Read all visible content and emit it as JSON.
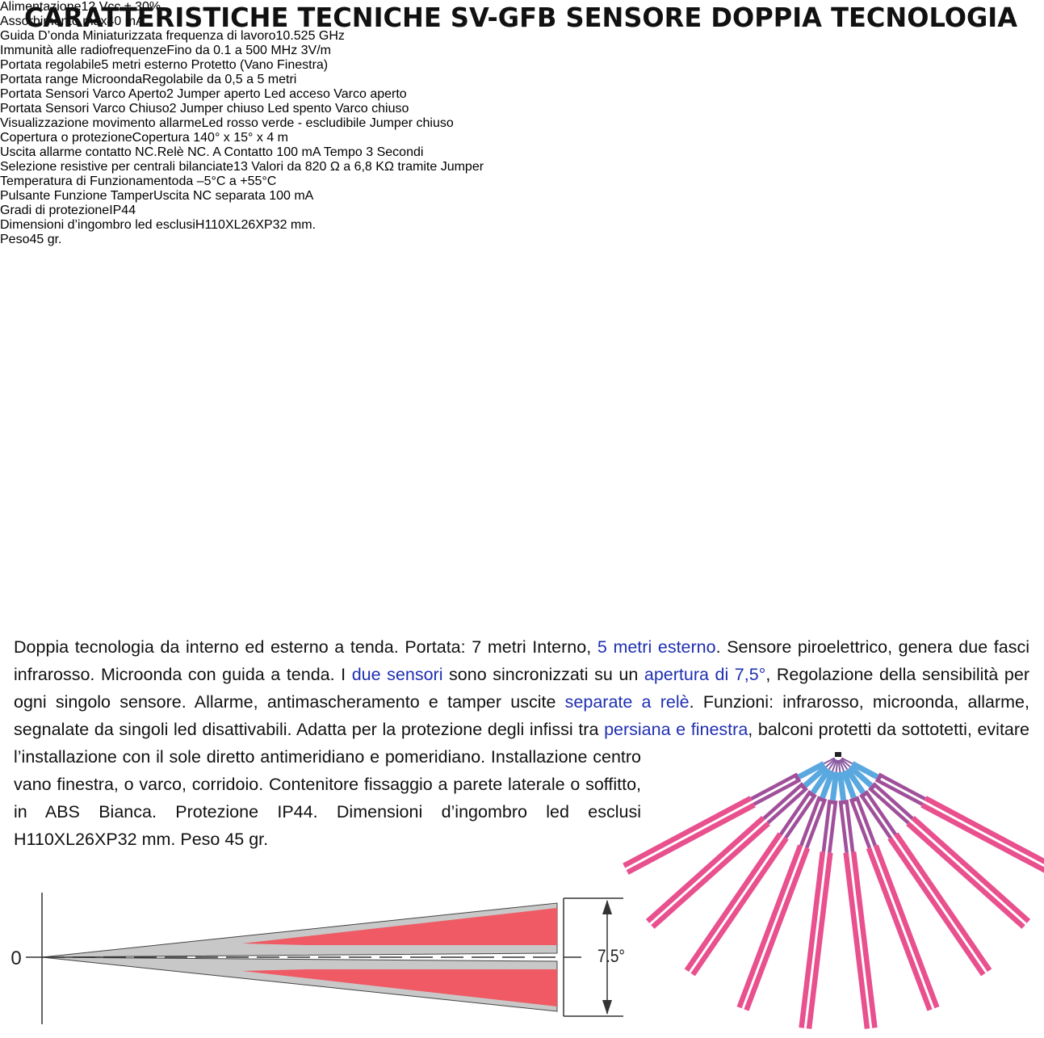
{
  "header": {
    "title": "CARATTERISTICHE TECNICHE SV-GFB SENSORE DOPPIA TECNOLOGIA"
  },
  "specs": {
    "rows": [
      [
        "Alimentazione",
        "12 Vcc ± 30%"
      ],
      [
        "Assorbimento max",
        "40 mA"
      ],
      [
        "Guida D’onda Miniaturizzata frequenza di lavoro",
        "10.525 GHz"
      ],
      [
        "Immunità alle radiofrequenze",
        "Fino da 0.1 a 500 MHz 3V/m"
      ],
      [
        "Portata regolabile",
        "5 metri esterno Protetto (Vano Finestra)"
      ],
      [
        "Portata range Microonda",
        "Regolabile da 0,5 a 5 metri"
      ],
      [
        "Portata Sensori Varco Aperto",
        "2 Jumper aperto Led acceso Varco aperto"
      ],
      [
        "Portata Sensori Varco Chiuso",
        "2 Jumper chiuso Led spento Varco chiuso"
      ],
      [
        "Visualizzazione movimento allarme",
        "Led rosso verde - escludibile Jumper chiuso"
      ],
      [
        "Copertura o protezione",
        "Copertura 140° x 15° x 4 m"
      ],
      [
        "Uscita allarme contatto NC.",
        "Relè NC. A Contatto 100 mA Tempo 3 Secondi"
      ],
      [
        "Selezione resistive per centrali bilanciate",
        "13 Valori da 820 Ω a 6,8 KΩ tramite Jumper"
      ],
      [
        "Temperatura di Funzionamento",
        "da –5°C a +55°C"
      ],
      [
        "Pulsante Funzione Tamper",
        "Uscita NC separata 100 mA"
      ],
      [
        "Gradi di protezione",
        "IP44"
      ],
      [
        "Dimensioni d’ingombro led esclusi",
        "H110XL26XP32 mm."
      ],
      [
        "Peso",
        "45 gr."
      ]
    ]
  },
  "description": {
    "runs": [
      {
        "text": "Doppia tecnologia da interno ed esterno a tenda. Portata: 7 metri Interno, "
      },
      {
        "text": "5 metri esterno",
        "color": "#1f2fb0"
      },
      {
        "text": ". Sensore piroelettrico, genera due fasci infrarosso. Microonda con guida a tenda. I "
      },
      {
        "text": "due sensori",
        "color": "#1f2fb0"
      },
      {
        "text": " sono sincronizzati su un "
      },
      {
        "text": "apertura di 7,5°",
        "color": "#1f2fb0"
      },
      {
        "text": ", Regolazione della sensibilità per ogni singolo sensore. Allarme, antimascheramento e tamper uscite "
      },
      {
        "text": "separate a relè",
        "color": "#1f2fb0"
      },
      {
        "text": ". Funzioni: infrarosso, microonda, allarme, segnalate da singoli led disattivabili. Adatta per la protezione degli infissi tra "
      },
      {
        "text": "persiana e finestra",
        "color": "#1f2fb0"
      },
      {
        "text": ", balconi protetti da sottotetti, evitare l’installazione con il sole diretto antimeridiano e pomeridiano. Installazione centro vano finestra, o varco, corridoio. Contenitore fissaggio a parete laterale o soffitto, in ABS Bianca. Protezione IP44. Dimensioni d’ingombro led esclusi H110XL26XP32 mm.  Peso 45 gr."
      }
    ]
  },
  "side_view": {
    "origin_label": "0",
    "angle_label": "7.5°"
  }
}
